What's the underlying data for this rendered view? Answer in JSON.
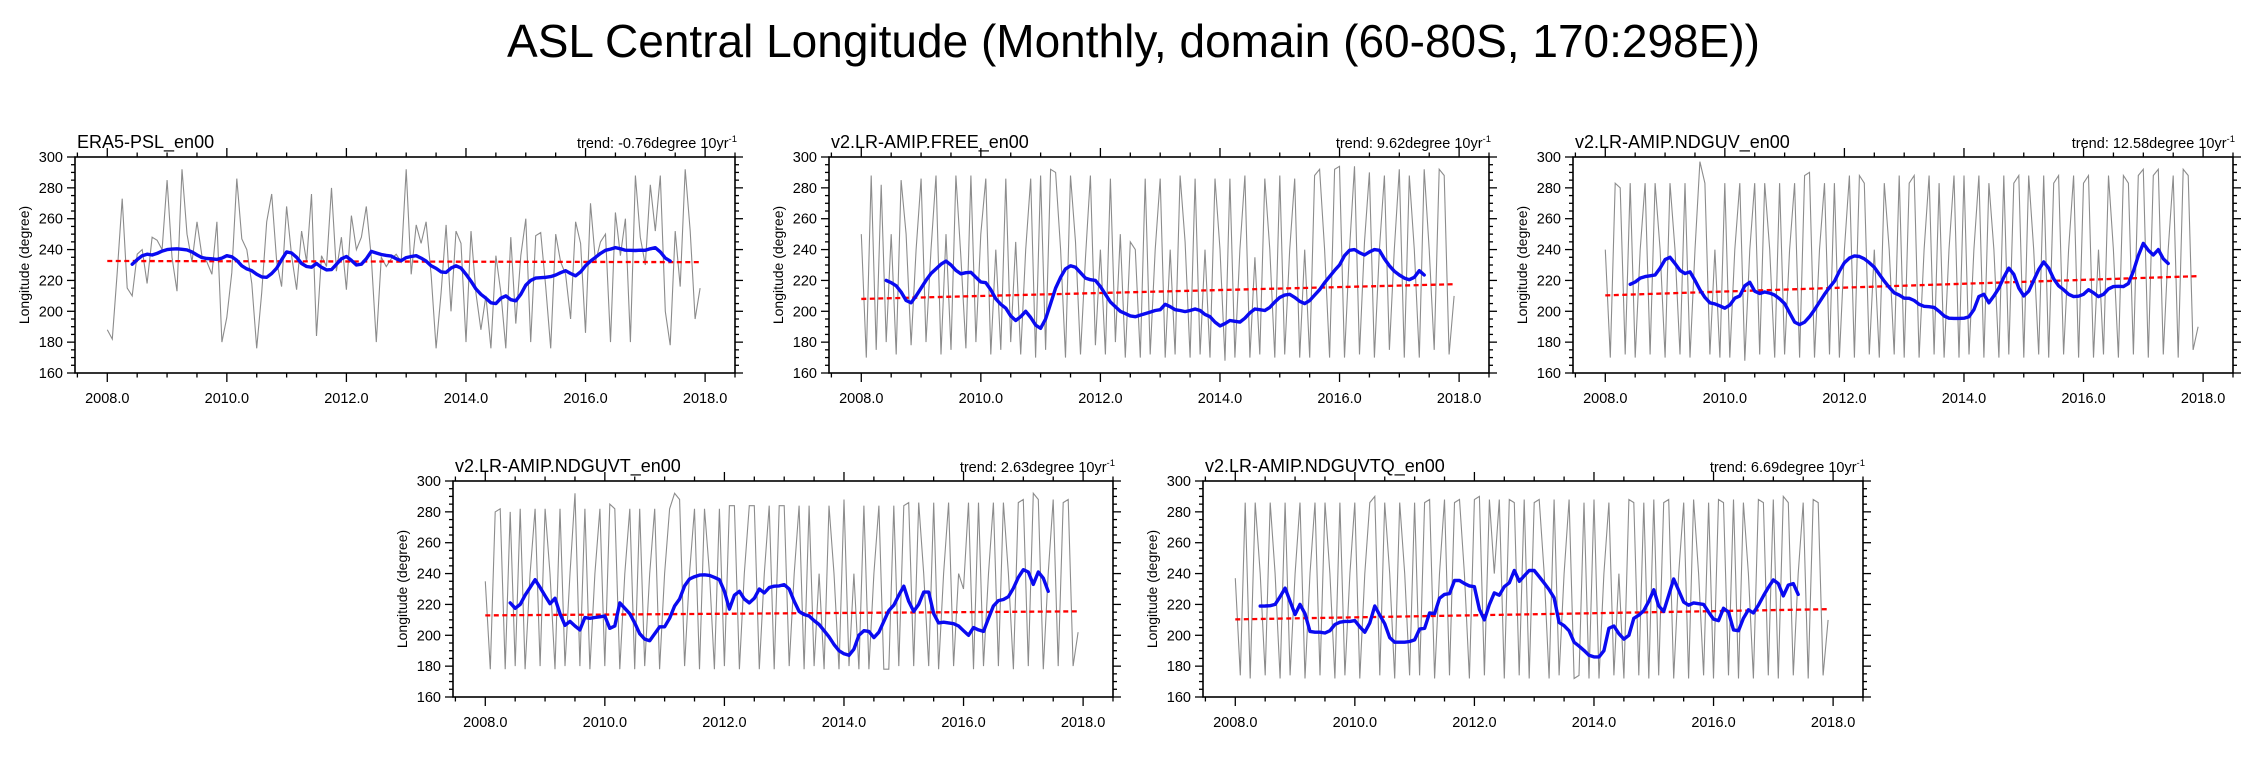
{
  "title": "ASL Central Longitude (Monthly, domain (60-80S, 170:298E))",
  "ylabel": "Longitude (degree)",
  "colors": {
    "monthly_line": "#8c8c8c",
    "smoothed_line": "#0a0af0",
    "trend_line": "#ff0000",
    "text": "#000000"
  },
  "axes": {
    "xlim": [
      2007.46,
      2018.5
    ],
    "ylim": [
      160,
      300
    ],
    "x_tick_values": [
      2008,
      2010,
      2012,
      2014,
      2016,
      2018
    ],
    "x_tick_labels": [
      "2008.0",
      "2010.0",
      "2012.0",
      "2014.0",
      "2016.0",
      "2018.0"
    ],
    "x_minor_step": 0.5,
    "y_tick_values": [
      160,
      180,
      200,
      220,
      240,
      260,
      280,
      300
    ],
    "y_tick_labels": [
      "160",
      "180",
      "200",
      "220",
      "240",
      "260",
      "280",
      "300"
    ],
    "y_minor_step": 5,
    "grid": false
  },
  "chart_data": [
    {
      "type": "line",
      "title": "ERA5-PSL_en00",
      "trend_label": "trend: -0.76degree 10yr",
      "trend_sup": "-1",
      "trend_per_decade": -0.76,
      "trend_line": {
        "t0": 2008.0,
        "v0": 232.6,
        "t1": 2017.92,
        "v1": 231.85
      },
      "monthly_start": 2008.0,
      "monthly_values": [
        188,
        182,
        225,
        273,
        215,
        210,
        237,
        240,
        218,
        248,
        246,
        240,
        285,
        235,
        213,
        292,
        250,
        232,
        258,
        236,
        232,
        224,
        258,
        180,
        196,
        225,
        286,
        247,
        240,
        218,
        176,
        212,
        258,
        276,
        232,
        216,
        268,
        236,
        214,
        252,
        232,
        276,
        184,
        236,
        229,
        280,
        226,
        248,
        214,
        262,
        240,
        248,
        268,
        235,
        180,
        235,
        229,
        234,
        237,
        232,
        292,
        224,
        256,
        244,
        258,
        224,
        176,
        212,
        256,
        200,
        252,
        244,
        180,
        252,
        212,
        188,
        210,
        176,
        236,
        212,
        176,
        248,
        192,
        236,
        260,
        180,
        249,
        251,
        216,
        176,
        250,
        232,
        224,
        195,
        258,
        244,
        186,
        270,
        232,
        245,
        250,
        180,
        264,
        236,
        260,
        180,
        288,
        248,
        230,
        282,
        252,
        288,
        200,
        178,
        252,
        216,
        292,
        252,
        195,
        215
      ],
      "smoothed_start": 2008.4167,
      "smoothed_values": [
        230.5,
        233.5,
        236,
        237,
        236.5,
        237.5,
        239,
        240,
        240.3,
        240.5,
        240.2,
        239.8,
        238.5,
        236.5,
        234.8,
        234.2,
        234,
        233.6,
        234.5,
        236,
        235.3,
        233,
        229.5,
        227.5,
        226.3,
        224,
        222.3,
        222,
        224.5,
        228,
        233.5,
        238.5,
        237.8,
        235,
        231,
        229,
        228.6,
        231,
        228.5,
        226.8,
        227,
        230.5,
        234,
        235.5,
        233,
        230,
        230.5,
        234,
        238.8,
        237.8,
        236.8,
        236.2,
        235.8,
        234,
        232.8,
        234.8,
        235.5,
        236,
        234.5,
        232.5,
        229.5,
        227.8,
        225.5,
        225.2,
        228,
        229.5,
        228,
        224,
        219.5,
        214.5,
        211,
        208.5,
        205.5,
        205,
        208.5,
        210,
        207.5,
        206.8,
        211,
        217,
        220,
        221.5,
        221.8,
        222,
        222.5,
        223.5,
        225,
        226.3,
        224.5,
        223,
        225.5,
        229.5,
        232.5,
        235,
        237.5,
        239.5,
        240.3,
        241.3,
        240.5,
        239.6,
        239.5,
        239.4,
        239.6,
        239.5,
        240.5,
        241.2,
        238.5,
        234.5,
        232.5
      ]
    },
    {
      "type": "line",
      "title": "v2.LR-AMIP.FREE_en00",
      "trend_label": "trend: 9.62degree 10yr",
      "trend_sup": "-1",
      "trend_per_decade": 9.62,
      "trend_line": {
        "t0": 2008.0,
        "v0": 208.0,
        "t1": 2017.92,
        "v1": 217.54
      },
      "monthly_start": 2008.0,
      "monthly_values": [
        250,
        170,
        288,
        175,
        282,
        180,
        250,
        172,
        285,
        250,
        178,
        240,
        286,
        180,
        240,
        288,
        172,
        250,
        175,
        288,
        235,
        176,
        288,
        180,
        250,
        286,
        172,
        240,
        175,
        286,
        180,
        245,
        172,
        240,
        286,
        170,
        288,
        175,
        292,
        290,
        240,
        170,
        288,
        245,
        172,
        235,
        288,
        178,
        240,
        172,
        286,
        180,
        250,
        170,
        245,
        240,
        170,
        286,
        172,
        240,
        286,
        170,
        240,
        172,
        288,
        245,
        170,
        286,
        172,
        240,
        170,
        286,
        240,
        168,
        286,
        170,
        240,
        288,
        170,
        235,
        172,
        286,
        240,
        170,
        288,
        172,
        240,
        286,
        170,
        240,
        170,
        288,
        292,
        240,
        170,
        292,
        294,
        170,
        240,
        294,
        172,
        245,
        290,
        170,
        240,
        288,
        175,
        240,
        292,
        170,
        288,
        240,
        170,
        292,
        240,
        175,
        292,
        288,
        172,
        210
      ],
      "smoothed_start": 2008.4167,
      "smoothed_values": [
        220,
        218.5,
        216.5,
        212.5,
        207,
        205.5,
        210,
        215,
        220,
        224.5,
        227.5,
        230.5,
        232.5,
        230,
        226.5,
        224.3,
        225,
        225.3,
        222,
        219,
        218.5,
        214,
        208,
        204.5,
        202,
        197,
        194,
        196.5,
        200,
        196,
        191,
        189,
        195,
        205,
        215,
        222,
        227.5,
        229.5,
        228.5,
        225,
        221.5,
        220.5,
        220,
        216,
        211,
        206,
        203,
        200,
        198.5,
        197,
        196.5,
        197.5,
        198.5,
        199.5,
        200.5,
        201,
        204.5,
        203,
        201,
        200.5,
        199.8,
        200.5,
        201.5,
        200.5,
        198,
        196.5,
        193,
        190.5,
        192,
        194,
        193.5,
        193,
        195.5,
        199,
        201.5,
        201,
        200.5,
        202.5,
        206,
        209,
        210.5,
        211,
        209,
        206.5,
        205,
        207,
        210.5,
        214,
        218.5,
        222.5,
        226.5,
        230,
        236,
        239.5,
        240,
        238,
        236.5,
        238.5,
        240,
        239.5,
        234,
        229.5,
        226,
        223.5,
        221.5,
        220.5,
        222,
        226.3,
        223.5
      ]
    },
    {
      "type": "line",
      "title": "v2.LR-AMIP.NDGUV_en00",
      "trend_label": "trend: 12.58degree 10yr",
      "trend_sup": "-1",
      "trend_per_decade": 12.58,
      "trend_line": {
        "t0": 2008.0,
        "v0": 210.3,
        "t1": 2017.92,
        "v1": 222.78
      },
      "monthly_start": 2008.0,
      "monthly_values": [
        240,
        170,
        283,
        280,
        172,
        283,
        170,
        240,
        283,
        172,
        283,
        240,
        170,
        283,
        240,
        172,
        283,
        170,
        240,
        297,
        283,
        172,
        240,
        170,
        283,
        170,
        240,
        283,
        168,
        240,
        283,
        172,
        283,
        240,
        170,
        283,
        172,
        240,
        283,
        170,
        288,
        290,
        170,
        240,
        283,
        172,
        283,
        170,
        240,
        288,
        170,
        288,
        283,
        172,
        240,
        170,
        283,
        240,
        172,
        288,
        170,
        283,
        288,
        170,
        240,
        288,
        172,
        283,
        170,
        240,
        288,
        170,
        288,
        172,
        240,
        288,
        170,
        283,
        240,
        170,
        288,
        172,
        283,
        288,
        170,
        288,
        240,
        172,
        288,
        170,
        283,
        288,
        172,
        240,
        288,
        170,
        283,
        288,
        170,
        240,
        172,
        288,
        240,
        170,
        288,
        283,
        172,
        288,
        292,
        170,
        288,
        292,
        172,
        240,
        288,
        170,
        292,
        288,
        175,
        190
      ],
      "smoothed_start": 2008.4167,
      "smoothed_values": [
        217.5,
        219,
        221.5,
        222.5,
        223,
        223.5,
        228,
        233.5,
        235,
        231,
        226.5,
        224.5,
        225.5,
        220,
        214,
        209,
        205.5,
        204.8,
        203.5,
        202,
        204,
        208.5,
        210,
        216.5,
        218.8,
        213,
        211.5,
        212.5,
        211.8,
        210.5,
        208,
        205,
        199,
        193,
        191.4,
        193,
        196.5,
        201,
        206,
        211,
        215.5,
        219.5,
        226,
        231.5,
        234.5,
        235.9,
        235.5,
        234,
        231.5,
        228.5,
        224,
        219.5,
        215.5,
        212,
        210.5,
        208.5,
        208.4,
        207,
        204.5,
        203.2,
        203,
        202.5,
        200,
        197,
        195.5,
        195.4,
        195.4,
        195.5,
        196.5,
        201,
        209.6,
        211,
        205.5,
        210,
        215,
        222,
        228,
        224,
        215,
        210,
        213,
        220,
        227,
        232,
        228,
        221,
        216.5,
        214,
        211,
        209.5,
        209.8,
        211,
        214,
        212,
        209.5,
        211,
        214.5,
        216,
        216.2,
        216,
        218,
        226,
        236,
        244,
        239.5,
        236.5,
        240,
        234,
        231
      ]
    },
    {
      "type": "line",
      "title": "v2.LR-AMIP.NDGUVT_en00",
      "trend_label": "trend: 2.63degree 10yr",
      "trend_sup": "-1",
      "trend_per_decade": 2.63,
      "trend_line": {
        "t0": 2008.0,
        "v0": 212.9,
        "t1": 2017.92,
        "v1": 215.51
      },
      "monthly_start": 2008.0,
      "monthly_values": [
        235,
        178,
        280,
        282,
        178,
        280,
        180,
        282,
        178,
        240,
        282,
        180,
        282,
        240,
        178,
        282,
        180,
        240,
        292,
        180,
        282,
        178,
        240,
        282,
        180,
        285,
        282,
        178,
        240,
        282,
        178,
        282,
        180,
        240,
        282,
        178,
        240,
        282,
        292,
        288,
        180,
        240,
        282,
        178,
        282,
        240,
        178,
        282,
        180,
        284,
        284,
        178,
        240,
        284,
        284,
        178,
        240,
        284,
        178,
        284,
        284,
        180,
        240,
        284,
        178,
        284,
        180,
        240,
        178,
        284,
        240,
        178,
        288,
        180,
        240,
        178,
        284,
        178,
        240,
        284,
        178,
        178,
        284,
        180,
        284,
        286,
        180,
        286,
        240,
        180,
        286,
        178,
        240,
        286,
        180,
        240,
        230,
        286,
        178,
        286,
        180,
        240,
        286,
        180,
        286,
        240,
        178,
        286,
        288,
        180,
        292,
        288,
        178,
        240,
        288,
        180,
        286,
        288,
        180,
        202
      ],
      "smoothed_start": 2008.4167,
      "smoothed_values": [
        221,
        217.5,
        220,
        226,
        231,
        236,
        231,
        225.5,
        220.5,
        224,
        214,
        206.5,
        209,
        206,
        203.5,
        211.5,
        211,
        211.5,
        212,
        212.5,
        204.5,
        206,
        221,
        217.5,
        214,
        208,
        201,
        197.5,
        196.5,
        201,
        205.5,
        205.5,
        211,
        219,
        223.5,
        232,
        236.5,
        238,
        239,
        239.2,
        238.8,
        237.5,
        236,
        228.5,
        217,
        226,
        228.5,
        223.5,
        221,
        224,
        230,
        227.5,
        231,
        231.8,
        232,
        232.8,
        230,
        222,
        215.5,
        213.5,
        212.5,
        209.5,
        207,
        203,
        199,
        194,
        190,
        188,
        187,
        191,
        200,
        203,
        202.5,
        198.5,
        202,
        209,
        216,
        219.5,
        226,
        231.8,
        222,
        215.5,
        220,
        228,
        228,
        214,
        208,
        208.5,
        208,
        207.5,
        206,
        203,
        200,
        205,
        203.5,
        202.5,
        211,
        219,
        222.5,
        223.2,
        225,
        230.5,
        237.5,
        242.5,
        241,
        233,
        241,
        237,
        228.5
      ]
    },
    {
      "type": "line",
      "title": "v2.LR-AMIP.NDGUVTQ_en00",
      "trend_label": "trend: 6.69degree 10yr",
      "trend_sup": "-1",
      "trend_per_decade": 6.69,
      "trend_line": {
        "t0": 2008.0,
        "v0": 210.3,
        "t1": 2017.92,
        "v1": 216.93
      },
      "monthly_start": 2008.0,
      "monthly_values": [
        237,
        174,
        286,
        172,
        286,
        240,
        174,
        286,
        240,
        172,
        286,
        174,
        240,
        286,
        172,
        240,
        286,
        174,
        286,
        240,
        172,
        286,
        174,
        240,
        286,
        172,
        240,
        286,
        290,
        174,
        286,
        240,
        172,
        286,
        240,
        174,
        286,
        174,
        286,
        288,
        172,
        240,
        288,
        174,
        286,
        288,
        240,
        172,
        288,
        290,
        174,
        288,
        240,
        288,
        172,
        288,
        286,
        174,
        288,
        172,
        286,
        288,
        240,
        172,
        288,
        174,
        240,
        288,
        172,
        174,
        286,
        172,
        288,
        172,
        240,
        286,
        174,
        240,
        172,
        288,
        286,
        174,
        286,
        172,
        288,
        174,
        286,
        288,
        172,
        240,
        286,
        172,
        288,
        240,
        174,
        286,
        172,
        288,
        286,
        174,
        288,
        172,
        286,
        240,
        172,
        288,
        286,
        174,
        288,
        172,
        290,
        286,
        174,
        240,
        286,
        172,
        288,
        286,
        174,
        210
      ],
      "smoothed_start": 2008.4167,
      "smoothed_values": [
        218.9,
        219,
        219.2,
        220,
        225,
        230.6,
        222,
        213.5,
        220,
        214,
        202.5,
        202,
        202,
        201.5,
        203,
        207,
        208.5,
        209,
        209,
        209.5,
        205.5,
        202,
        208,
        219,
        213,
        207.5,
        198.5,
        195.5,
        195.5,
        195.5,
        196,
        197,
        204,
        204.5,
        214.5,
        214,
        224,
        226.5,
        227,
        235.5,
        235.5,
        233.5,
        232,
        231.5,
        216.8,
        210,
        220,
        227.5,
        226,
        231.5,
        234,
        242,
        235,
        238.5,
        242,
        242,
        238,
        233.8,
        229.6,
        224.3,
        208.3,
        206.2,
        202.9,
        195.5,
        193,
        190.2,
        187,
        186,
        186,
        190,
        204.5,
        206,
        201,
        197.5,
        200,
        211,
        213,
        216,
        222,
        229.5,
        219,
        215.5,
        226,
        236.5,
        229,
        221.5,
        219.5,
        221,
        220.5,
        220,
        215,
        210.5,
        209.5,
        217.5,
        215,
        203.5,
        203,
        211,
        216.5,
        214.5,
        219.5,
        225.5,
        231,
        235.9,
        233.5,
        225.5,
        232.5,
        233.5,
        226.5
      ]
    }
  ]
}
